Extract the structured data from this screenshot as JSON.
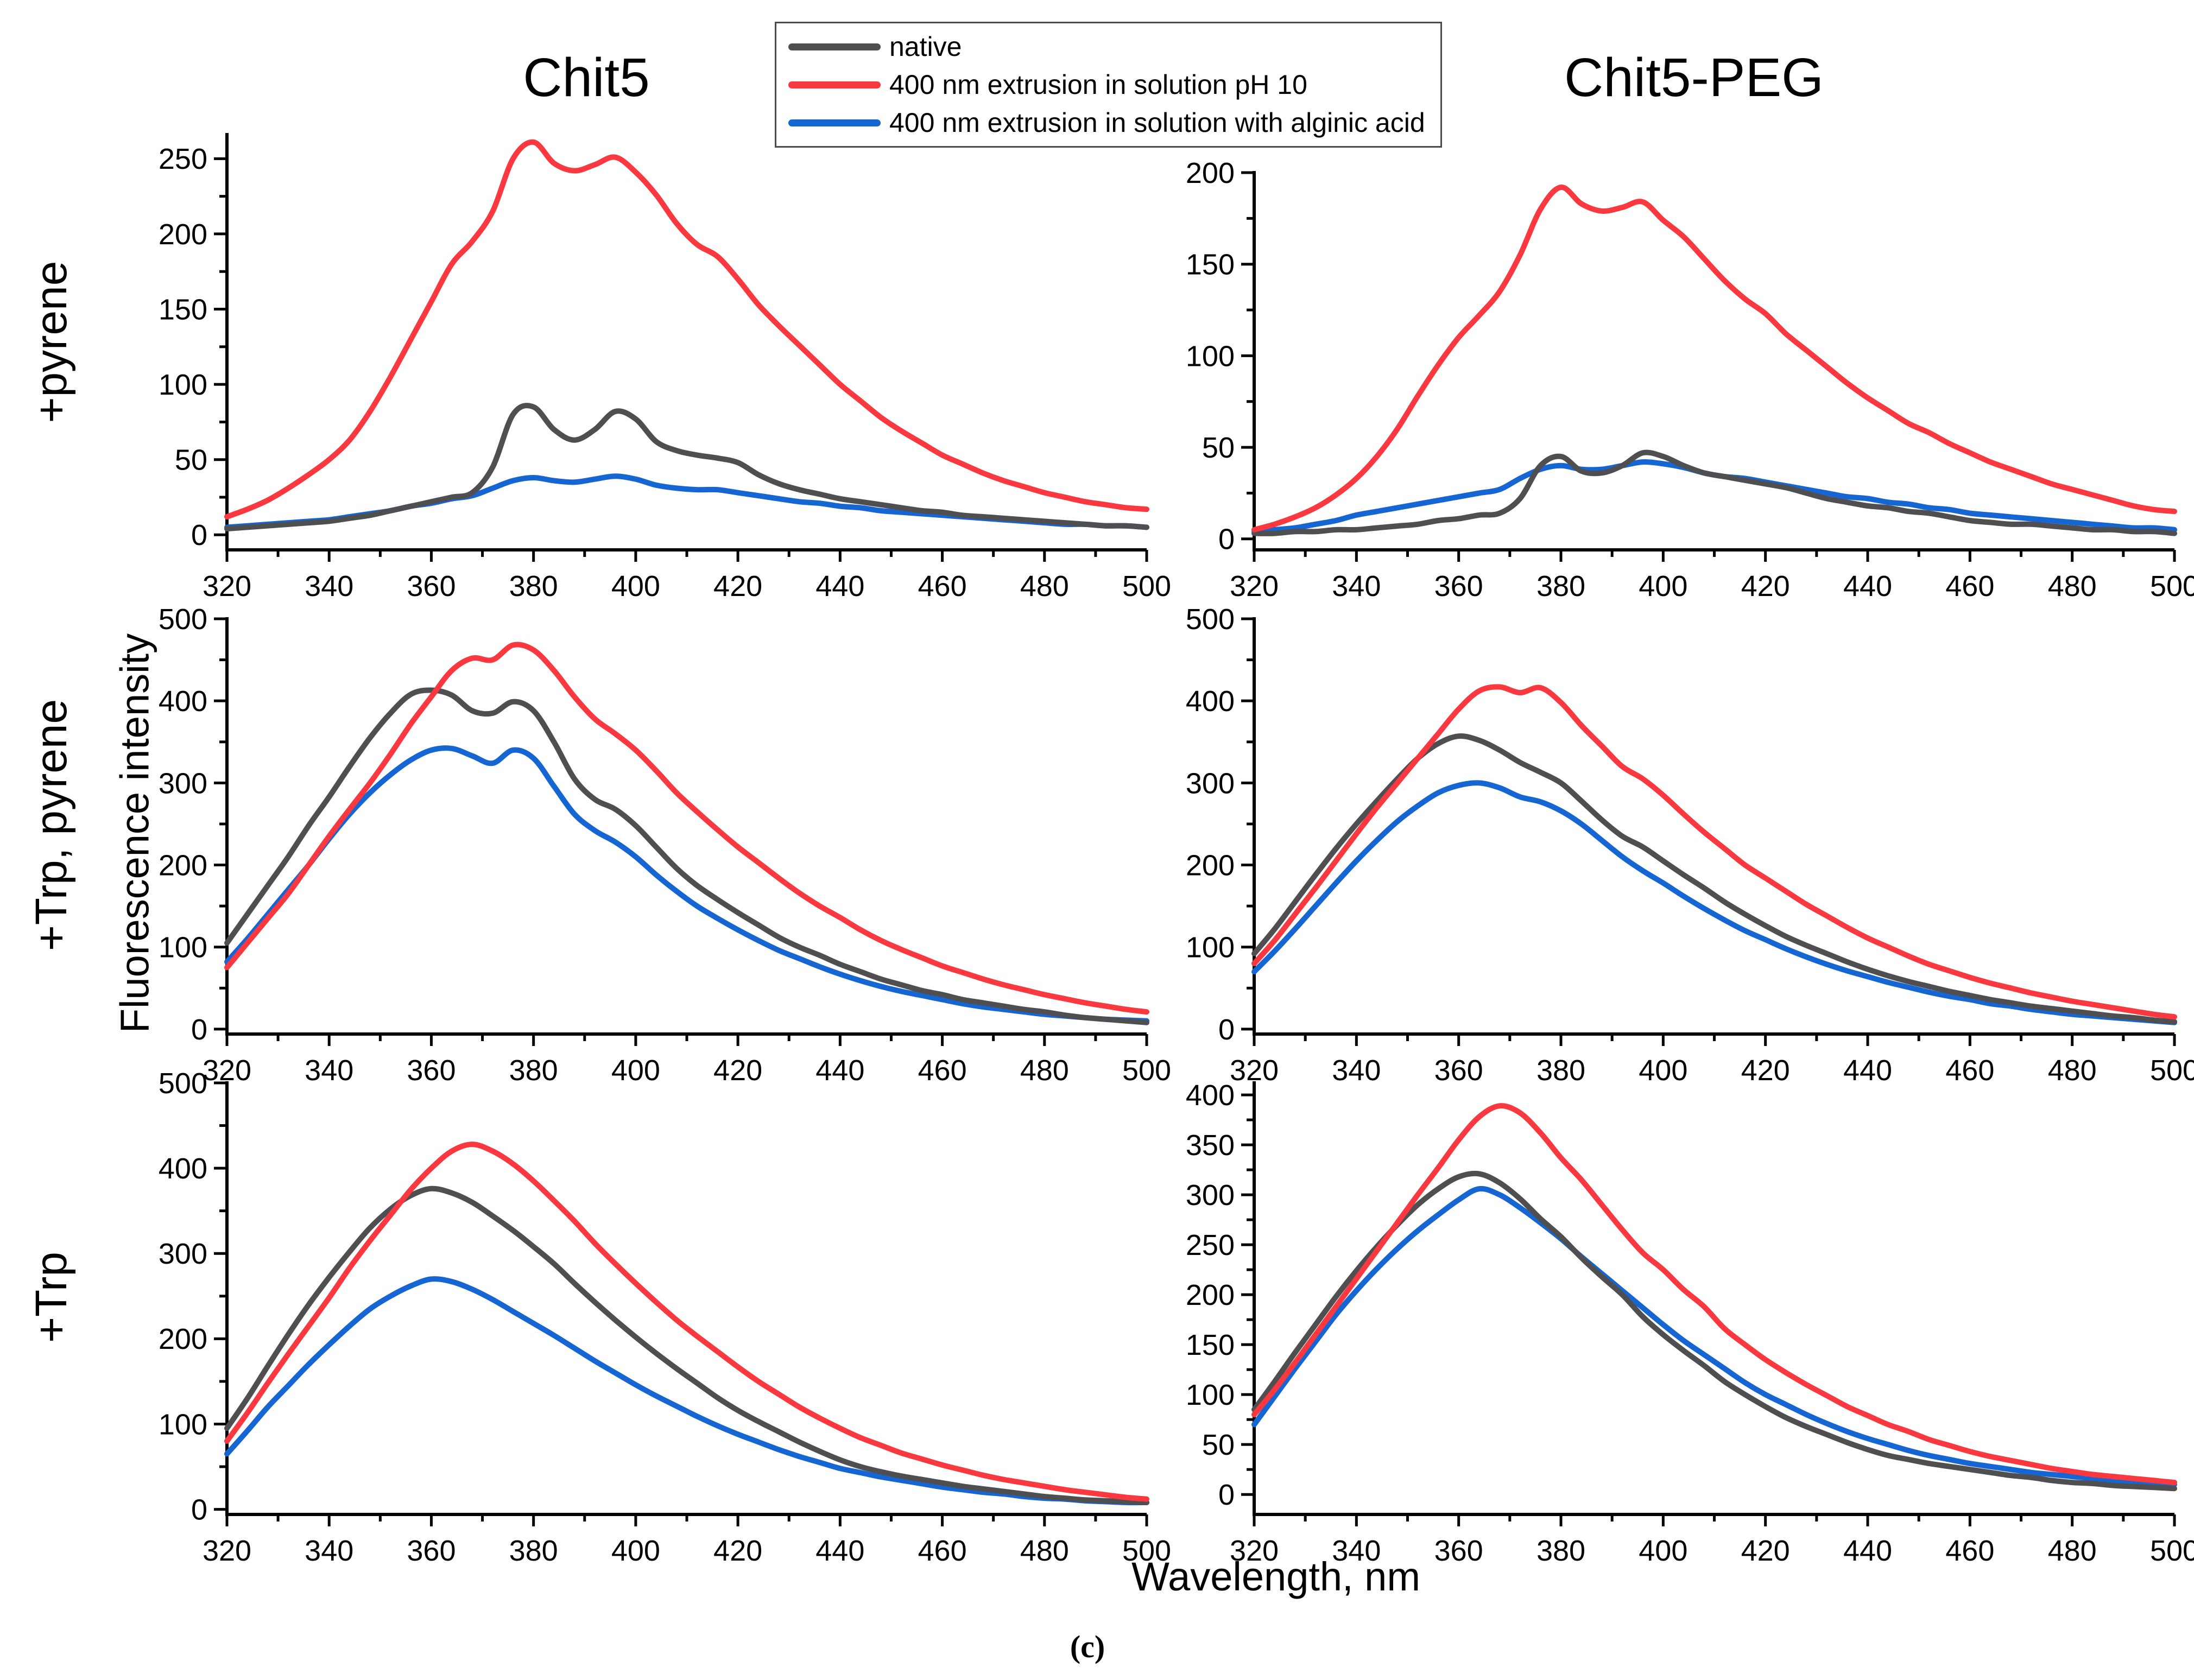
{
  "figure": {
    "titles": [
      "Chit5",
      "Chit5-PEG"
    ],
    "row_labels": [
      "+pyrene",
      "+Trp, pyrene",
      "+Trp"
    ],
    "xlabel": "Wavelength, nm",
    "ylabel": "Fluorescence intensity",
    "caption": "(c)"
  },
  "legend": {
    "items": [
      {
        "label": "native",
        "color": "#4F4F51"
      },
      {
        "label": "400 nm extrusion in solution pH 10",
        "color": "#F9393F"
      },
      {
        "label": "400 nm extrusion in solution with alginic acid",
        "color": "#1565D2"
      }
    ]
  },
  "x_axis": {
    "label": "Wavelength, nm",
    "range": [
      320,
      500
    ],
    "ticks": [
      320,
      340,
      360,
      380,
      400,
      420,
      440,
      460,
      480,
      500
    ],
    "minor_step": 10
  },
  "x_nm": [
    320,
    324,
    328,
    332,
    336,
    340,
    344,
    348,
    352,
    356,
    360,
    364,
    368,
    372,
    376,
    380,
    384,
    388,
    392,
    396,
    400,
    404,
    408,
    412,
    416,
    420,
    424,
    428,
    432,
    436,
    440,
    444,
    448,
    452,
    456,
    460,
    464,
    468,
    472,
    476,
    480,
    484,
    488,
    492,
    496,
    500
  ],
  "chart_data": [
    {
      "id": "chit5-pyrene",
      "type": "line",
      "column_title": "Chit5",
      "row_label": "+pyrene",
      "y_axis": {
        "lim": [
          0,
          266
        ],
        "ticks": [
          0,
          50,
          100,
          150,
          200,
          250
        ],
        "minor_step": 25
      },
      "series": [
        {
          "name": "native",
          "color": "#4F4F51",
          "values": [
            4,
            5,
            6,
            7,
            8,
            9,
            11,
            13,
            16,
            19,
            22,
            25,
            28,
            45,
            80,
            85,
            70,
            63,
            70,
            82,
            77,
            62,
            56,
            53,
            51,
            48,
            40,
            34,
            30,
            27,
            24,
            22,
            20,
            18,
            16,
            15,
            13,
            12,
            11,
            10,
            9,
            8,
            7,
            6,
            6,
            5
          ]
        },
        {
          "name": "400 nm extrusion in solution pH 10",
          "color": "#F9393F",
          "values": [
            12,
            17,
            23,
            31,
            40,
            50,
            63,
            82,
            105,
            130,
            155,
            180,
            195,
            215,
            250,
            261,
            247,
            242,
            246,
            251,
            241,
            226,
            207,
            193,
            185,
            170,
            153,
            139,
            126,
            113,
            100,
            89,
            78,
            69,
            61,
            53,
            47,
            41,
            36,
            32,
            28,
            25,
            22,
            20,
            18,
            17
          ]
        },
        {
          "name": "400 nm extrusion in solution with alginic acid",
          "color": "#1565D2",
          "values": [
            5,
            6,
            7,
            8,
            9,
            10,
            12,
            14,
            16,
            19,
            21,
            24,
            26,
            31,
            36,
            38,
            36,
            35,
            37,
            39,
            37,
            33,
            31,
            30,
            30,
            28,
            26,
            24,
            22,
            21,
            19,
            18,
            16,
            15,
            14,
            13,
            12,
            11,
            10,
            9,
            8,
            7,
            7,
            6,
            6,
            5
          ]
        }
      ]
    },
    {
      "id": "chit5peg-pyrene",
      "type": "line",
      "column_title": "Chit5-PEG",
      "row_label": "+pyrene",
      "y_axis": {
        "lim": [
          0,
          200
        ],
        "ticks": [
          0,
          50,
          100,
          150,
          200
        ],
        "minor_step": 25
      },
      "series": [
        {
          "name": "native",
          "color": "#4F4F51",
          "values": [
            3,
            3,
            4,
            4,
            5,
            5,
            6,
            7,
            8,
            10,
            11,
            13,
            14,
            22,
            40,
            45,
            37,
            36,
            40,
            47,
            45,
            40,
            36,
            34,
            32,
            30,
            28,
            25,
            22,
            20,
            18,
            17,
            15,
            14,
            12,
            10,
            9,
            8,
            8,
            7,
            6,
            5,
            5,
            4,
            4,
            3
          ]
        },
        {
          "name": "400 nm extrusion in solution pH 10",
          "color": "#F9393F",
          "values": [
            5,
            8,
            12,
            17,
            24,
            33,
            45,
            60,
            78,
            95,
            110,
            122,
            135,
            155,
            180,
            192,
            183,
            179,
            181,
            184,
            174,
            165,
            153,
            141,
            131,
            123,
            112,
            103,
            94,
            85,
            77,
            70,
            63,
            58,
            52,
            47,
            42,
            38,
            34,
            30,
            27,
            24,
            21,
            18,
            16,
            15
          ]
        },
        {
          "name": "400 nm extrusion in solution with alginic acid",
          "color": "#1565D2",
          "values": [
            4,
            5,
            6,
            8,
            10,
            13,
            15,
            17,
            19,
            21,
            23,
            25,
            27,
            33,
            38,
            40,
            38,
            38,
            40,
            42,
            41,
            39,
            36,
            34,
            33,
            31,
            29,
            27,
            25,
            23,
            22,
            20,
            19,
            17,
            16,
            14,
            13,
            12,
            11,
            10,
            9,
            8,
            7,
            6,
            6,
            5
          ]
        }
      ]
    },
    {
      "id": "chit5-trp-pyrene",
      "type": "line",
      "column_title": "Chit5",
      "row_label": "+Trp, pyrene",
      "y_axis": {
        "lim": [
          0,
          500
        ],
        "ticks": [
          0,
          100,
          200,
          300,
          400,
          500
        ],
        "minor_step": 50
      },
      "series": [
        {
          "name": "native",
          "color": "#4F4F51",
          "values": [
            105,
            140,
            175,
            210,
            248,
            283,
            320,
            355,
            385,
            408,
            413,
            407,
            388,
            385,
            399,
            388,
            350,
            305,
            280,
            268,
            248,
            222,
            196,
            175,
            158,
            142,
            127,
            112,
            100,
            90,
            79,
            70,
            61,
            54,
            47,
            42,
            36,
            32,
            28,
            24,
            21,
            17,
            14,
            12,
            10,
            8
          ]
        },
        {
          "name": "400 nm extrusion in solution pH 10",
          "color": "#F9393F",
          "values": [
            75,
            105,
            135,
            165,
            200,
            235,
            268,
            300,
            335,
            372,
            405,
            437,
            452,
            450,
            468,
            462,
            437,
            405,
            378,
            360,
            340,
            315,
            288,
            265,
            243,
            222,
            203,
            184,
            166,
            150,
            136,
            121,
            108,
            97,
            87,
            77,
            69,
            61,
            54,
            48,
            42,
            37,
            32,
            28,
            24,
            21
          ]
        },
        {
          "name": "400 nm extrusion in solution with alginic acid",
          "color": "#1565D2",
          "values": [
            82,
            110,
            140,
            170,
            200,
            232,
            262,
            288,
            310,
            328,
            340,
            342,
            333,
            324,
            340,
            330,
            296,
            262,
            242,
            228,
            210,
            188,
            168,
            150,
            135,
            121,
            108,
            96,
            86,
            76,
            67,
            59,
            52,
            46,
            41,
            36,
            31,
            27,
            24,
            21,
            18,
            16,
            14,
            12,
            11,
            10
          ]
        }
      ]
    },
    {
      "id": "chit5peg-trp-pyrene",
      "type": "line",
      "column_title": "Chit5-PEG",
      "row_label": "+Trp, pyrene",
      "y_axis": {
        "lim": [
          0,
          500
        ],
        "ticks": [
          0,
          100,
          200,
          300,
          400,
          500
        ],
        "minor_step": 50
      },
      "series": [
        {
          "name": "native",
          "color": "#4F4F51",
          "values": [
            92,
            122,
            155,
            188,
            220,
            250,
            278,
            305,
            330,
            348,
            357,
            352,
            340,
            325,
            313,
            300,
            278,
            255,
            235,
            222,
            205,
            188,
            172,
            155,
            140,
            126,
            113,
            102,
            92,
            82,
            73,
            65,
            58,
            52,
            46,
            41,
            36,
            32,
            28,
            25,
            22,
            19,
            16,
            14,
            11,
            9
          ]
        },
        {
          "name": "400 nm extrusion in solution pH 10",
          "color": "#F9393F",
          "values": [
            80,
            108,
            140,
            172,
            205,
            238,
            270,
            300,
            330,
            360,
            390,
            412,
            417,
            410,
            416,
            398,
            370,
            345,
            320,
            305,
            285,
            262,
            240,
            220,
            200,
            184,
            168,
            152,
            138,
            124,
            111,
            100,
            89,
            79,
            71,
            63,
            56,
            50,
            44,
            39,
            34,
            30,
            26,
            22,
            18,
            15
          ]
        },
        {
          "name": "400 nm extrusion in solution with alginic acid",
          "color": "#1565D2",
          "values": [
            70,
            95,
            122,
            150,
            178,
            205,
            230,
            253,
            272,
            288,
            297,
            300,
            294,
            283,
            277,
            266,
            250,
            230,
            210,
            193,
            178,
            162,
            147,
            133,
            120,
            109,
            98,
            88,
            79,
            71,
            64,
            57,
            51,
            45,
            40,
            36,
            31,
            28,
            24,
            21,
            18,
            16,
            14,
            12,
            10,
            8
          ]
        }
      ]
    },
    {
      "id": "chit5-trp",
      "type": "line",
      "column_title": "Chit5",
      "row_label": "+Trp",
      "y_axis": {
        "lim": [
          0,
          500
        ],
        "ticks": [
          0,
          100,
          200,
          300,
          400,
          500
        ],
        "minor_step": 50
      },
      "series": [
        {
          "name": "native",
          "color": "#4F4F51",
          "values": [
            95,
            130,
            168,
            205,
            240,
            272,
            302,
            330,
            352,
            368,
            376,
            371,
            360,
            344,
            327,
            308,
            288,
            265,
            243,
            222,
            202,
            183,
            165,
            148,
            131,
            116,
            103,
            91,
            79,
            68,
            58,
            50,
            44,
            39,
            35,
            31,
            27,
            24,
            21,
            18,
            15,
            13,
            11,
            10,
            9,
            8
          ]
        },
        {
          "name": "400 nm extrusion in solution pH 10",
          "color": "#F9393F",
          "values": [
            80,
            113,
            148,
            182,
            215,
            248,
            283,
            315,
            345,
            375,
            400,
            420,
            428,
            420,
            405,
            385,
            362,
            338,
            312,
            288,
            265,
            243,
            222,
            203,
            185,
            167,
            150,
            135,
            120,
            107,
            95,
            84,
            75,
            66,
            59,
            52,
            46,
            40,
            35,
            31,
            27,
            23,
            20,
            17,
            14,
            12
          ]
        },
        {
          "name": "400 nm extrusion in solution with alginic acid",
          "color": "#1565D2",
          "values": [
            65,
            92,
            120,
            145,
            170,
            193,
            215,
            235,
            250,
            262,
            270,
            267,
            258,
            246,
            232,
            218,
            204,
            189,
            174,
            160,
            146,
            133,
            121,
            109,
            98,
            88,
            79,
            70,
            62,
            55,
            48,
            43,
            38,
            34,
            30,
            26,
            23,
            20,
            18,
            15,
            13,
            12,
            10,
            9,
            8,
            8
          ]
        }
      ]
    },
    {
      "id": "chit5peg-trp",
      "type": "line",
      "column_title": "Chit5-PEG",
      "row_label": "+Trp",
      "y_axis": {
        "lim": [
          0,
          412
        ],
        "ticks": [
          0,
          50,
          100,
          150,
          200,
          250,
          300,
          350,
          400
        ],
        "minor_step": 25
      },
      "series": [
        {
          "name": "native",
          "color": "#4F4F51",
          "values": [
            85,
            113,
            142,
            170,
            198,
            224,
            248,
            270,
            290,
            306,
            318,
            321,
            312,
            296,
            276,
            258,
            237,
            218,
            200,
            178,
            160,
            144,
            129,
            113,
            100,
            88,
            77,
            68,
            60,
            52,
            45,
            39,
            35,
            31,
            28,
            25,
            22,
            19,
            17,
            14,
            12,
            11,
            9,
            8,
            7,
            6
          ]
        },
        {
          "name": "400 nm extrusion in solution pH 10",
          "color": "#F9393F",
          "values": [
            80,
            105,
            132,
            160,
            188,
            216,
            244,
            272,
            300,
            327,
            355,
            378,
            389,
            382,
            362,
            337,
            315,
            290,
            265,
            242,
            225,
            205,
            188,
            166,
            150,
            135,
            122,
            110,
            99,
            88,
            79,
            70,
            63,
            55,
            49,
            43,
            38,
            34,
            30,
            26,
            23,
            20,
            18,
            16,
            14,
            12
          ]
        },
        {
          "name": "400 nm extrusion in solution with alginic acid",
          "color": "#1565D2",
          "values": [
            70,
            98,
            126,
            153,
            180,
            204,
            226,
            246,
            264,
            280,
            295,
            306,
            300,
            287,
            272,
            256,
            238,
            221,
            204,
            187,
            170,
            154,
            140,
            126,
            112,
            100,
            90,
            80,
            71,
            63,
            56,
            50,
            44,
            39,
            35,
            31,
            28,
            25,
            22,
            20,
            18,
            16,
            14,
            13,
            11,
            10
          ]
        }
      ]
    }
  ]
}
